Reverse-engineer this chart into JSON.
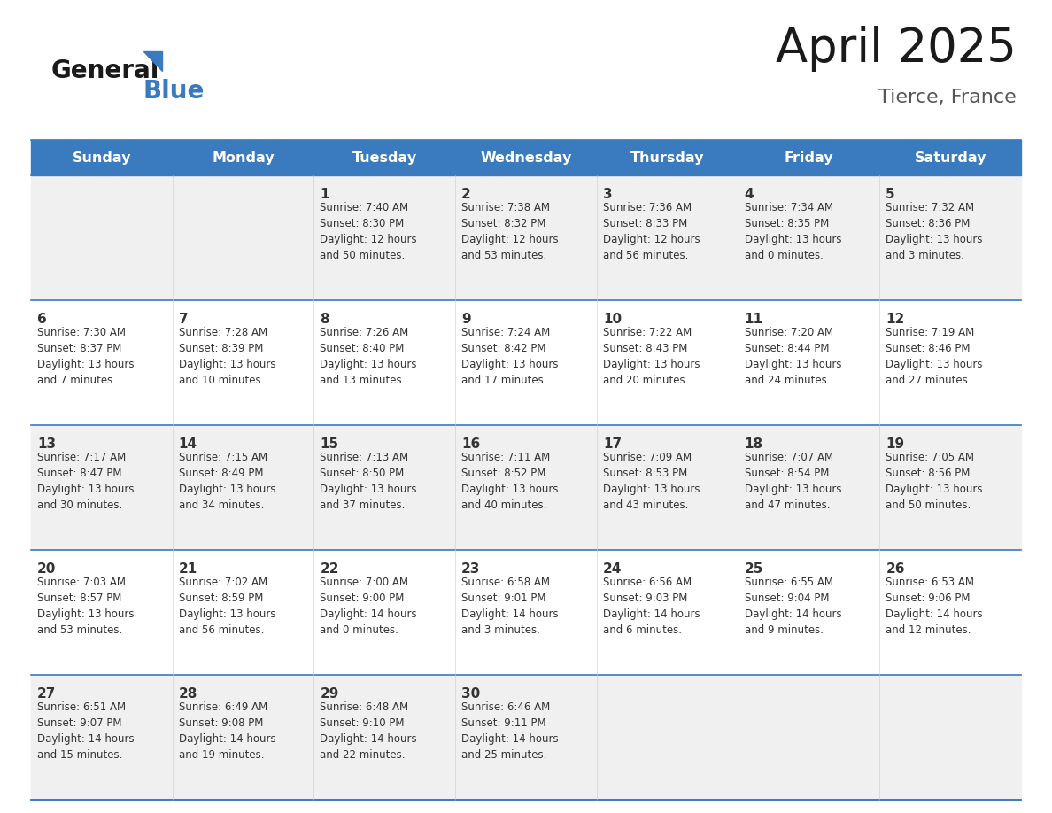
{
  "title": "April 2025",
  "subtitle": "Tierce, France",
  "header_bg": "#3a7abf",
  "header_text_color": "#ffffff",
  "row_bg_odd": "#f0f0f0",
  "row_bg_even": "#ffffff",
  "cell_text_color": "#333333",
  "day_number_color": "#333333",
  "border_color": "#3a7abf",
  "grid_line_color": "#3a7abf",
  "days_of_week": [
    "Sunday",
    "Monday",
    "Tuesday",
    "Wednesday",
    "Thursday",
    "Friday",
    "Saturday"
  ],
  "weeks": [
    [
      {
        "day": "",
        "info": ""
      },
      {
        "day": "",
        "info": ""
      },
      {
        "day": "1",
        "info": "Sunrise: 7:40 AM\nSunset: 8:30 PM\nDaylight: 12 hours\nand 50 minutes."
      },
      {
        "day": "2",
        "info": "Sunrise: 7:38 AM\nSunset: 8:32 PM\nDaylight: 12 hours\nand 53 minutes."
      },
      {
        "day": "3",
        "info": "Sunrise: 7:36 AM\nSunset: 8:33 PM\nDaylight: 12 hours\nand 56 minutes."
      },
      {
        "day": "4",
        "info": "Sunrise: 7:34 AM\nSunset: 8:35 PM\nDaylight: 13 hours\nand 0 minutes."
      },
      {
        "day": "5",
        "info": "Sunrise: 7:32 AM\nSunset: 8:36 PM\nDaylight: 13 hours\nand 3 minutes."
      }
    ],
    [
      {
        "day": "6",
        "info": "Sunrise: 7:30 AM\nSunset: 8:37 PM\nDaylight: 13 hours\nand 7 minutes."
      },
      {
        "day": "7",
        "info": "Sunrise: 7:28 AM\nSunset: 8:39 PM\nDaylight: 13 hours\nand 10 minutes."
      },
      {
        "day": "8",
        "info": "Sunrise: 7:26 AM\nSunset: 8:40 PM\nDaylight: 13 hours\nand 13 minutes."
      },
      {
        "day": "9",
        "info": "Sunrise: 7:24 AM\nSunset: 8:42 PM\nDaylight: 13 hours\nand 17 minutes."
      },
      {
        "day": "10",
        "info": "Sunrise: 7:22 AM\nSunset: 8:43 PM\nDaylight: 13 hours\nand 20 minutes."
      },
      {
        "day": "11",
        "info": "Sunrise: 7:20 AM\nSunset: 8:44 PM\nDaylight: 13 hours\nand 24 minutes."
      },
      {
        "day": "12",
        "info": "Sunrise: 7:19 AM\nSunset: 8:46 PM\nDaylight: 13 hours\nand 27 minutes."
      }
    ],
    [
      {
        "day": "13",
        "info": "Sunrise: 7:17 AM\nSunset: 8:47 PM\nDaylight: 13 hours\nand 30 minutes."
      },
      {
        "day": "14",
        "info": "Sunrise: 7:15 AM\nSunset: 8:49 PM\nDaylight: 13 hours\nand 34 minutes."
      },
      {
        "day": "15",
        "info": "Sunrise: 7:13 AM\nSunset: 8:50 PM\nDaylight: 13 hours\nand 37 minutes."
      },
      {
        "day": "16",
        "info": "Sunrise: 7:11 AM\nSunset: 8:52 PM\nDaylight: 13 hours\nand 40 minutes."
      },
      {
        "day": "17",
        "info": "Sunrise: 7:09 AM\nSunset: 8:53 PM\nDaylight: 13 hours\nand 43 minutes."
      },
      {
        "day": "18",
        "info": "Sunrise: 7:07 AM\nSunset: 8:54 PM\nDaylight: 13 hours\nand 47 minutes."
      },
      {
        "day": "19",
        "info": "Sunrise: 7:05 AM\nSunset: 8:56 PM\nDaylight: 13 hours\nand 50 minutes."
      }
    ],
    [
      {
        "day": "20",
        "info": "Sunrise: 7:03 AM\nSunset: 8:57 PM\nDaylight: 13 hours\nand 53 minutes."
      },
      {
        "day": "21",
        "info": "Sunrise: 7:02 AM\nSunset: 8:59 PM\nDaylight: 13 hours\nand 56 minutes."
      },
      {
        "day": "22",
        "info": "Sunrise: 7:00 AM\nSunset: 9:00 PM\nDaylight: 14 hours\nand 0 minutes."
      },
      {
        "day": "23",
        "info": "Sunrise: 6:58 AM\nSunset: 9:01 PM\nDaylight: 14 hours\nand 3 minutes."
      },
      {
        "day": "24",
        "info": "Sunrise: 6:56 AM\nSunset: 9:03 PM\nDaylight: 14 hours\nand 6 minutes."
      },
      {
        "day": "25",
        "info": "Sunrise: 6:55 AM\nSunset: 9:04 PM\nDaylight: 14 hours\nand 9 minutes."
      },
      {
        "day": "26",
        "info": "Sunrise: 6:53 AM\nSunset: 9:06 PM\nDaylight: 14 hours\nand 12 minutes."
      }
    ],
    [
      {
        "day": "27",
        "info": "Sunrise: 6:51 AM\nSunset: 9:07 PM\nDaylight: 14 hours\nand 15 minutes."
      },
      {
        "day": "28",
        "info": "Sunrise: 6:49 AM\nSunset: 9:08 PM\nDaylight: 14 hours\nand 19 minutes."
      },
      {
        "day": "29",
        "info": "Sunrise: 6:48 AM\nSunset: 9:10 PM\nDaylight: 14 hours\nand 22 minutes."
      },
      {
        "day": "30",
        "info": "Sunrise: 6:46 AM\nSunset: 9:11 PM\nDaylight: 14 hours\nand 25 minutes."
      },
      {
        "day": "",
        "info": ""
      },
      {
        "day": "",
        "info": ""
      },
      {
        "day": "",
        "info": ""
      }
    ]
  ]
}
